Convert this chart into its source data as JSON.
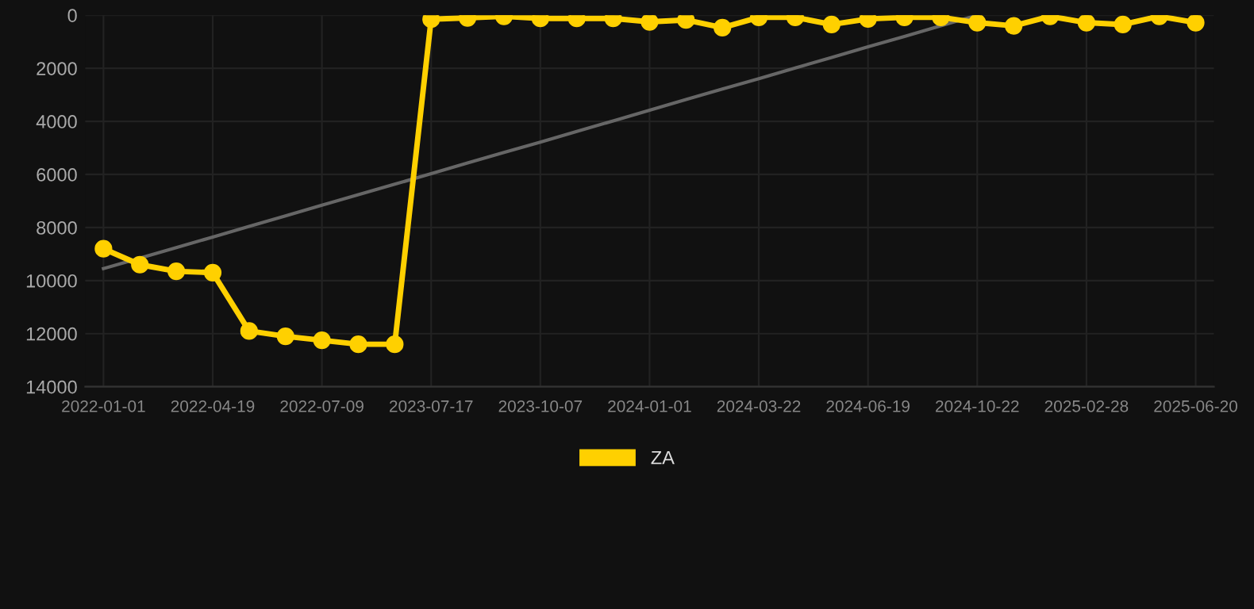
{
  "chart_data": {
    "type": "line",
    "categories": [
      "2022-01-01",
      null,
      null,
      "2022-04-19",
      null,
      null,
      "2022-07-09",
      null,
      null,
      "2023-07-17",
      null,
      null,
      "2023-10-07",
      null,
      null,
      "2024-01-01",
      null,
      null,
      "2024-03-22",
      null,
      null,
      "2024-06-19",
      null,
      null,
      "2024-10-22",
      null,
      null,
      "2025-02-28",
      null,
      null,
      "2025-06-20"
    ],
    "series": [
      {
        "name": "ZA",
        "color": "#ffd000",
        "marker": "circle",
        "values": [
          8800,
          9400,
          9650,
          9700,
          11900,
          12100,
          12250,
          12400,
          12400,
          150,
          100,
          40,
          120,
          120,
          120,
          250,
          180,
          470,
          80,
          80,
          350,
          140,
          80,
          80,
          280,
          400,
          40,
          280,
          350,
          40,
          280
        ]
      },
      {
        "color": "#666666",
        "marker": "none",
        "values": [
          9550,
          9150,
          8760,
          8360,
          7960,
          7560,
          7160,
          6760,
          6370,
          5970,
          5570,
          5170,
          4780,
          4380,
          3980,
          3580,
          3180,
          2780,
          2390,
          1990,
          1590,
          1190,
          800,
          400,
          0,
          null,
          null,
          null,
          null,
          null,
          null
        ]
      }
    ],
    "ylim": [
      14000,
      0
    ],
    "yticks": [
      0,
      2000,
      4000,
      6000,
      8000,
      10000,
      12000,
      14000
    ],
    "grid": true,
    "legend": "bottom"
  }
}
